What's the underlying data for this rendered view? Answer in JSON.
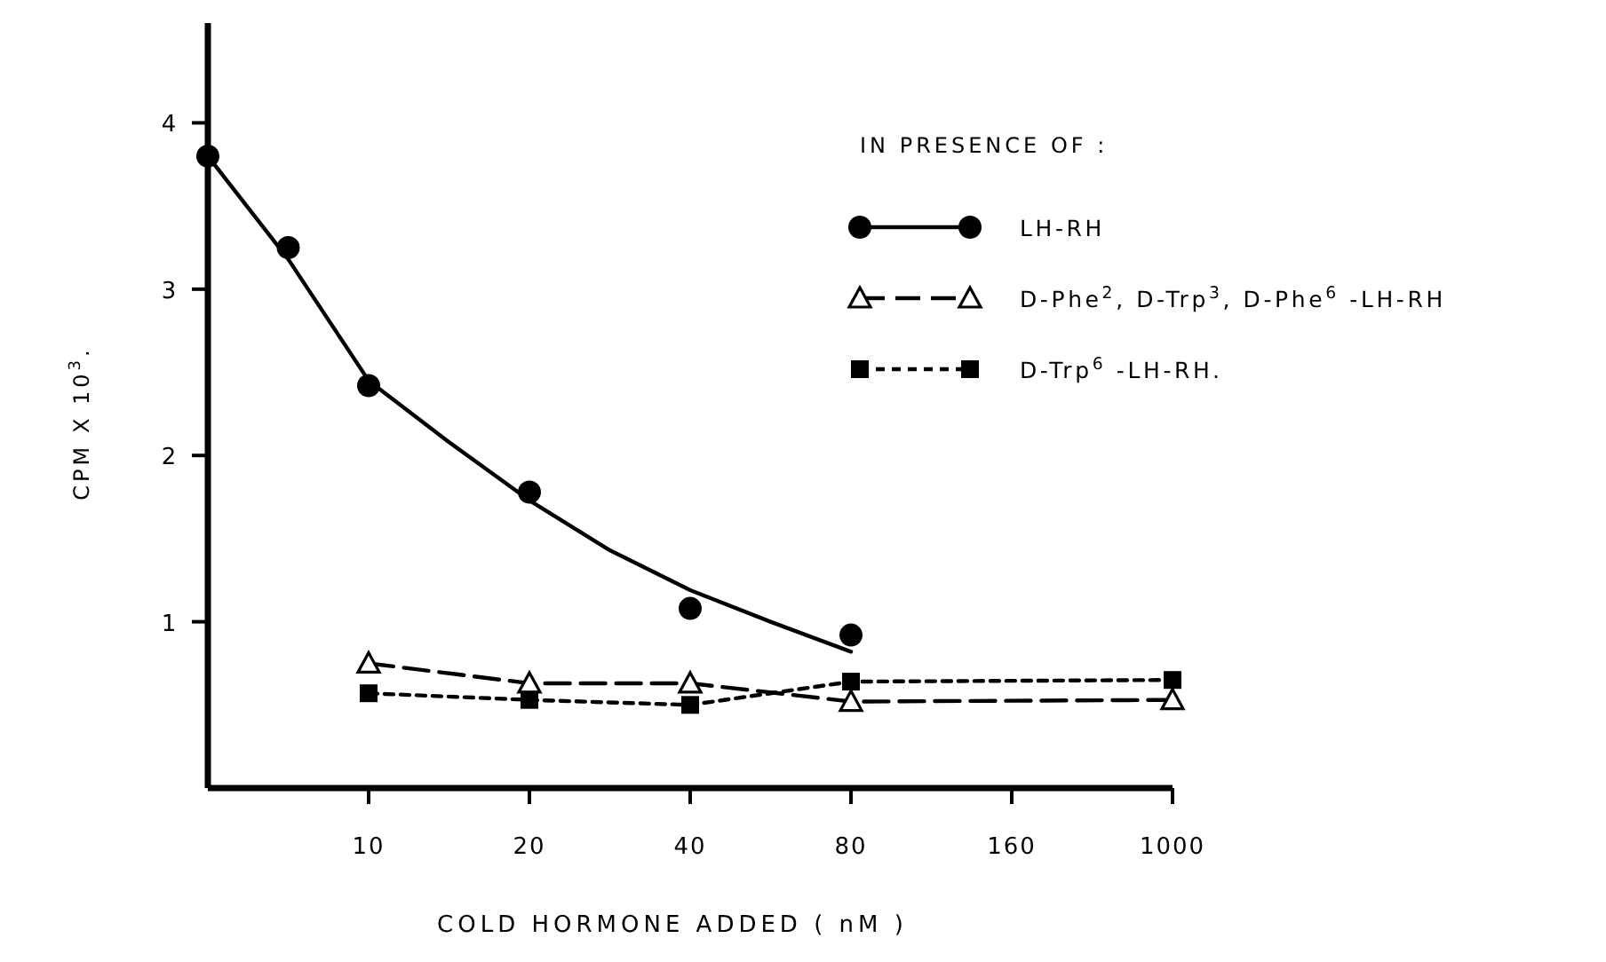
{
  "chart_data": {
    "type": "scatter",
    "xlabel": "COLD HORMONE ADDED ( nM )",
    "ylabel": "CPM X 10$^{3}$.",
    "legend_title": "IN PRESENCE OF :",
    "legend": "top right",
    "grid": false,
    "categories": [
      null,
      null,
      "10",
      null,
      "20",
      null,
      "40",
      null,
      "80",
      null,
      "160",
      null,
      "1000"
    ],
    "ylim": [
      0,
      4.6
    ],
    "yticks": [
      1,
      2,
      3,
      4
    ],
    "series": [
      {
        "name": "LH-RH",
        "marker": "circle",
        "line_style": "solid",
        "color": "#000000",
        "values": [
          3.8,
          3.25,
          2.42,
          null,
          1.78,
          null,
          1.08,
          null,
          0.92,
          null,
          null,
          null,
          null
        ]
      },
      {
        "type": "line",
        "marker": "none",
        "line_style": "solid",
        "color": "#000000",
        "values": [
          3.8,
          3.18,
          2.45,
          2.08,
          1.73,
          1.43,
          1.19,
          1.0,
          0.82,
          null,
          null,
          null,
          null
        ]
      },
      {
        "name": "D-Phe$^{2}$, D-Trp$^{3}$, D-Phe$^{6}$ -LH-RH",
        "type": "line",
        "marker": "triangle",
        "line_style": "dashed",
        "color": "#000000",
        "values": [
          null,
          null,
          0.75,
          null,
          0.63,
          null,
          0.63,
          null,
          0.52,
          null,
          null,
          null,
          0.53
        ]
      },
      {
        "name": "D-Trp$^{6}$ -LH-RH.",
        "type": "line",
        "marker": "square",
        "line_style": "dotted",
        "color": "#000000",
        "values": [
          null,
          null,
          0.57,
          null,
          0.53,
          null,
          0.5,
          null,
          0.64,
          null,
          null,
          null,
          0.65
        ]
      }
    ]
  }
}
